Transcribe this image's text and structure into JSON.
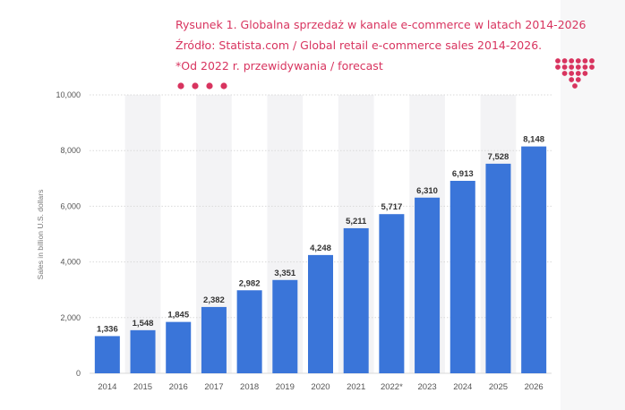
{
  "caption": {
    "line1": "Rysunek 1. Globalna sprzedaż w kanale e-commerce w latach 2014-2026",
    "line2": "Źródło: Statista.com / Global retail e-commerce sales 2014-2026.",
    "line3": "*Od 2022 r. przewidywania / forecast"
  },
  "colors": {
    "bar": "#3a75d9",
    "caption": "#d8345f",
    "band": "#f3f3f5",
    "grid": "#d9d9d9"
  },
  "chart_data": {
    "type": "bar",
    "categories": [
      "2014",
      "2015",
      "2016",
      "2017",
      "2018",
      "2019",
      "2020",
      "2021",
      "2022*",
      "2023",
      "2024",
      "2025",
      "2026"
    ],
    "values": [
      1336,
      1548,
      1845,
      2382,
      2982,
      3351,
      4248,
      5211,
      5717,
      6310,
      6913,
      7528,
      8148
    ],
    "value_labels": [
      "1,336",
      "1,548",
      "1,845",
      "2,382",
      "2,982",
      "3,351",
      "4,248",
      "5,211",
      "5,717",
      "6,310",
      "6,913",
      "7,528",
      "8,148"
    ],
    "yticks": [
      "0",
      "2,000",
      "4,000",
      "6,000",
      "8,000",
      "10,000"
    ],
    "ytick_values": [
      0,
      2000,
      4000,
      6000,
      8000,
      10000
    ],
    "ylabel": "Sales in billion U.S. dollars",
    "ylim": [
      0,
      10000
    ],
    "grid": true,
    "legend": "none"
  }
}
